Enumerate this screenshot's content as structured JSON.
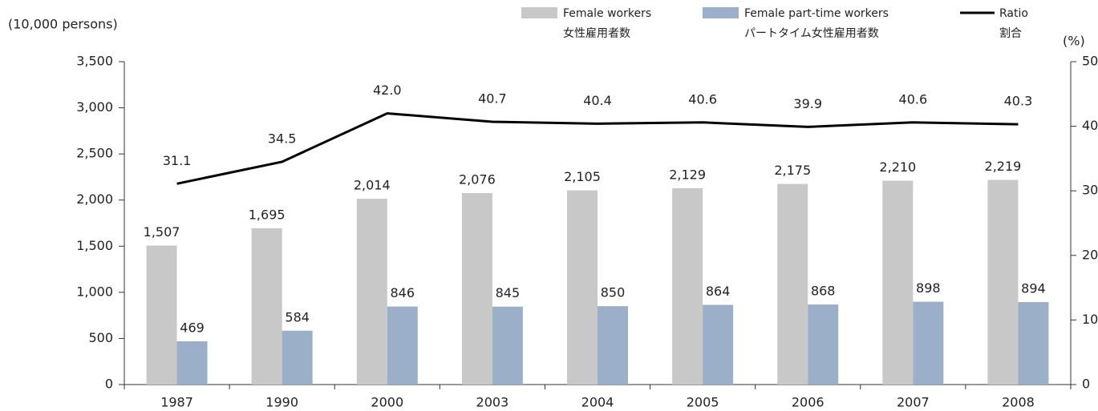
{
  "chart_data": {
    "type": "bar",
    "y_label": "(10,000 persons)",
    "y2_label": "(%)",
    "categories": [
      "1987",
      "1990",
      "2000",
      "2003",
      "2004",
      "2005",
      "2006",
      "2007",
      "2008"
    ],
    "series": [
      {
        "name": "Female workers",
        "name_ja": "女性雇用者数",
        "type": "bar",
        "color": "#c8c8c8",
        "values": [
          1507,
          1695,
          2014,
          2076,
          2105,
          2129,
          2175,
          2210,
          2219
        ],
        "value_labels": [
          "1,507",
          "1,695",
          "2,014",
          "2,076",
          "2,105",
          "2,129",
          "2,175",
          "2,210",
          "2,219"
        ]
      },
      {
        "name": "Female part-time workers",
        "name_ja": "パートタイム女性雇用者数",
        "type": "bar",
        "color": "#9bb0c8",
        "values": [
          469,
          584,
          846,
          845,
          850,
          864,
          868,
          898,
          894
        ]
      },
      {
        "name": "Ratio",
        "name_ja": "割合",
        "type": "line",
        "axis": "y2",
        "color": "#000000",
        "values": [
          31.1,
          34.5,
          42.0,
          40.7,
          40.4,
          40.6,
          39.9,
          40.6,
          40.3
        ],
        "value_labels": [
          "31.1",
          "34.5",
          "42.0",
          "40.7",
          "40.4",
          "40.6",
          "39.9",
          "40.6",
          "40.3"
        ]
      }
    ],
    "ylim": [
      0,
      3500
    ],
    "yticks": [
      0,
      500,
      {
        "value": 1000,
        "label": "1,000"
      },
      {
        "value": 1500,
        "label": "1,500"
      },
      {
        "value": 2000,
        "label": "2,000"
      },
      {
        "value": 2500,
        "label": "2,500"
      },
      {
        "value": 3000,
        "label": "3,000"
      },
      {
        "value": 3500,
        "label": "3,500"
      }
    ],
    "y2lim": [
      0,
      50
    ],
    "y2ticks": [
      0,
      10,
      20,
      30,
      40,
      50
    ],
    "grid": false
  }
}
